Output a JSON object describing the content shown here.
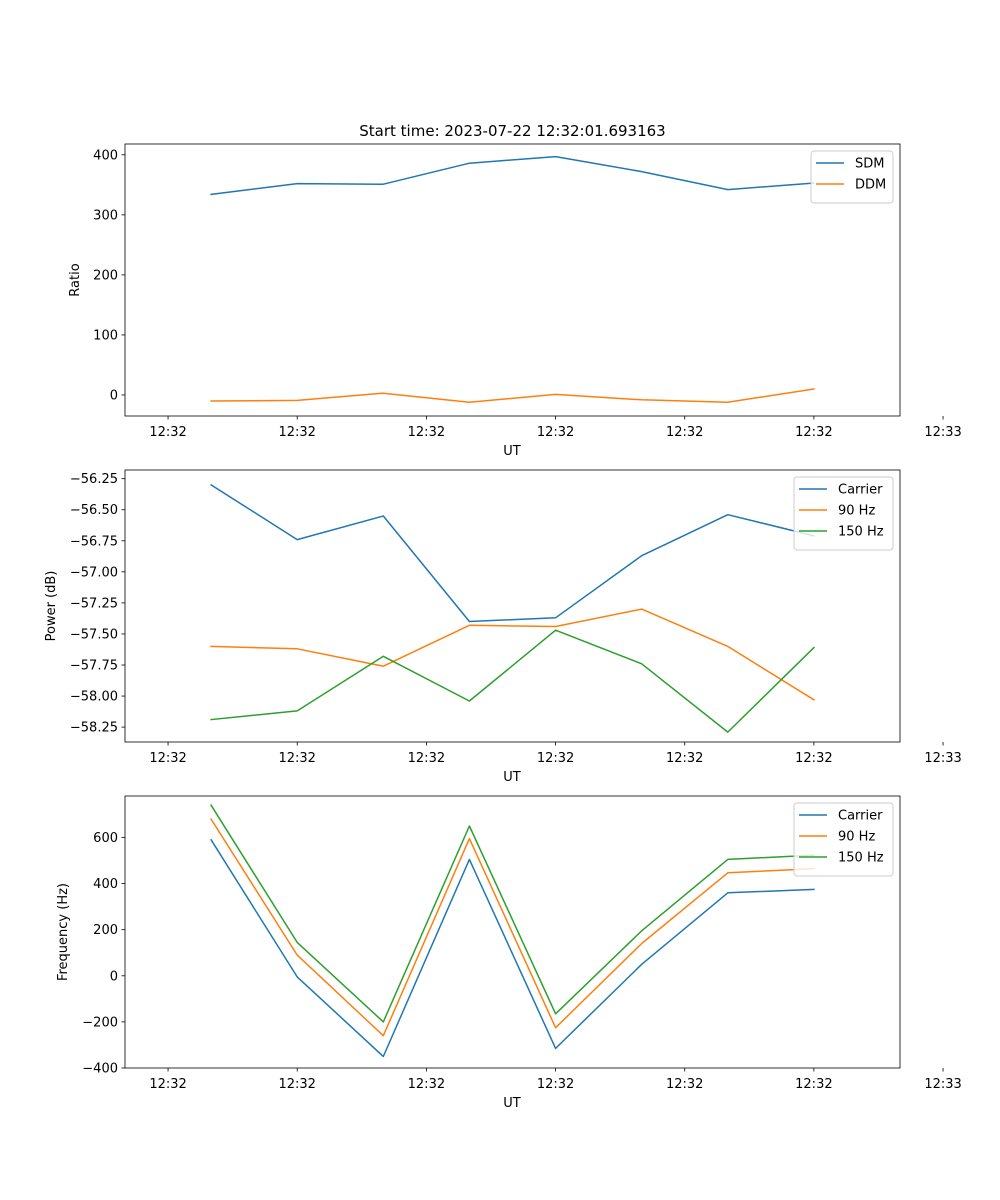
{
  "figure_title": "Start time: 2023-07-22 12:32:01.693163",
  "colors": {
    "SDM": "#1f77b4",
    "DDM": "#ff7f0e",
    "Carrier": "#1f77b4",
    "90 Hz": "#ff7f0e",
    "150 Hz": "#2ca02c"
  },
  "chart_data": [
    {
      "type": "line",
      "title": "Start time: 2023-07-22 12:32:01.693163",
      "xlabel": "UT",
      "ylabel": "Ratio",
      "xlim": [
        -1,
        17
      ],
      "ylim": [
        -35,
        418
      ],
      "x": [
        1,
        3,
        5,
        7,
        9,
        11,
        13,
        15
      ],
      "x_tick_values": [
        0,
        3,
        6,
        9,
        12,
        15,
        18
      ],
      "x_tick_labels": [
        "12:32",
        "12:32",
        "12:32",
        "12:32",
        "12:32",
        "12:32",
        "12:33"
      ],
      "y_ticks": [
        0,
        100,
        200,
        300,
        400
      ],
      "y_tick_labels": [
        "0",
        "100",
        "200",
        "300",
        "400"
      ],
      "legend": "top-right",
      "series": [
        {
          "name": "SDM",
          "values": [
            334,
            352,
            351,
            386,
            397,
            372,
            342,
            353
          ]
        },
        {
          "name": "DDM",
          "values": [
            -10,
            -9,
            3,
            -12,
            1,
            -8,
            -12,
            10
          ]
        }
      ]
    },
    {
      "type": "line",
      "title": "",
      "xlabel": "UT",
      "ylabel": "Power (dB)",
      "xlim": [
        -1,
        17
      ],
      "ylim": [
        -58.37,
        -56.18
      ],
      "x": [
        1,
        3,
        5,
        7,
        9,
        11,
        13,
        15
      ],
      "x_tick_values": [
        0,
        3,
        6,
        9,
        12,
        15,
        18
      ],
      "x_tick_labels": [
        "12:32",
        "12:32",
        "12:32",
        "12:32",
        "12:32",
        "12:32",
        "12:33"
      ],
      "y_ticks": [
        -58.25,
        -58.0,
        -57.75,
        -57.5,
        -57.25,
        -57.0,
        -56.75,
        -56.5,
        -56.25
      ],
      "y_tick_labels": [
        "−58.25",
        "−58.00",
        "−57.75",
        "−57.50",
        "−57.25",
        "−57.00",
        "−56.75",
        "−56.50",
        "−56.25"
      ],
      "legend": "top-right",
      "series": [
        {
          "name": "Carrier",
          "values": [
            -56.3,
            -56.74,
            -56.55,
            -57.4,
            -57.37,
            -56.87,
            -56.54,
            -56.71
          ]
        },
        {
          "name": "90 Hz",
          "values": [
            -57.6,
            -57.62,
            -57.76,
            -57.43,
            -57.44,
            -57.3,
            -57.6,
            -58.03
          ]
        },
        {
          "name": "150 Hz",
          "values": [
            -58.19,
            -58.12,
            -57.68,
            -58.04,
            -57.47,
            -57.74,
            -58.29,
            -57.61
          ]
        }
      ]
    },
    {
      "type": "line",
      "title": "",
      "xlabel": "UT",
      "ylabel": "Frequency (Hz)",
      "xlim": [
        -1,
        17
      ],
      "ylim": [
        -400,
        780
      ],
      "x": [
        1,
        3,
        5,
        7,
        9,
        11,
        13,
        15
      ],
      "x_tick_values": [
        0,
        3,
        6,
        9,
        12,
        15,
        18
      ],
      "x_tick_labels": [
        "12:32",
        "12:32",
        "12:32",
        "12:32",
        "12:32",
        "12:32",
        "12:33"
      ],
      "y_ticks": [
        -400,
        -200,
        0,
        200,
        400,
        600
      ],
      "y_tick_labels": [
        "−400",
        "−200",
        "0",
        "200",
        "400",
        "600"
      ],
      "legend": "top-right",
      "series": [
        {
          "name": "Carrier",
          "values": [
            590,
            -5,
            -350,
            505,
            -315,
            50,
            360,
            375
          ]
        },
        {
          "name": "90 Hz",
          "values": [
            680,
            90,
            -260,
            595,
            -225,
            140,
            447,
            465
          ]
        },
        {
          "name": "150 Hz",
          "values": [
            740,
            145,
            -200,
            650,
            -165,
            195,
            505,
            523
          ]
        }
      ]
    }
  ]
}
